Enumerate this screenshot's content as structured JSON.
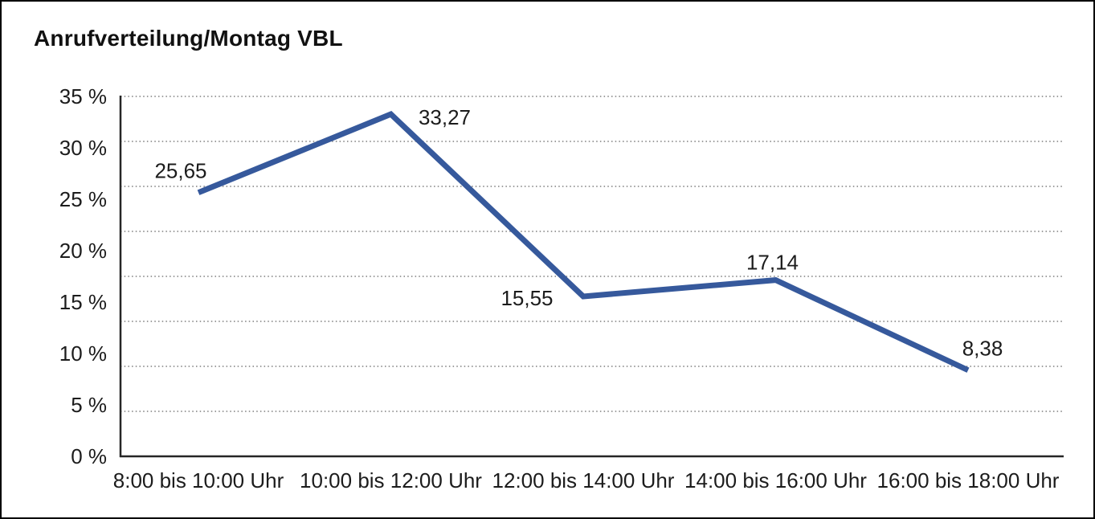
{
  "window": {
    "background_color": "#ffffff",
    "border_color": "#000000"
  },
  "chart_data": {
    "type": "line",
    "title": "Anrufverteilung/Montag VBL",
    "categories": [
      "8:00 bis 10:00 Uhr",
      "10:00 bis 12:00 Uhr",
      "12:00 bis 14:00 Uhr",
      "14:00 bis 16:00 Uhr",
      "16:00 bis 18:00 Uhr"
    ],
    "values": [
      25.65,
      33.27,
      15.55,
      17.14,
      8.38
    ],
    "point_labels": [
      "25,65",
      "33,27",
      "15,55",
      "17,14",
      "8,38"
    ],
    "xlabel": "",
    "ylabel": "",
    "y_tick_labels": [
      "35 %",
      "30 %",
      "25 %",
      "20 %",
      "15 %",
      "10 %",
      "5 %",
      "0 %"
    ],
    "ylim": [
      0,
      35
    ],
    "y_tick_step": 5,
    "grid": "horizontal dotted",
    "gridline_count": 9,
    "legend": "none",
    "line_color": "#36599C",
    "axis_color": "#262626",
    "gridline_color": "#7d7d7d",
    "text_color": "#1c1c1c"
  }
}
